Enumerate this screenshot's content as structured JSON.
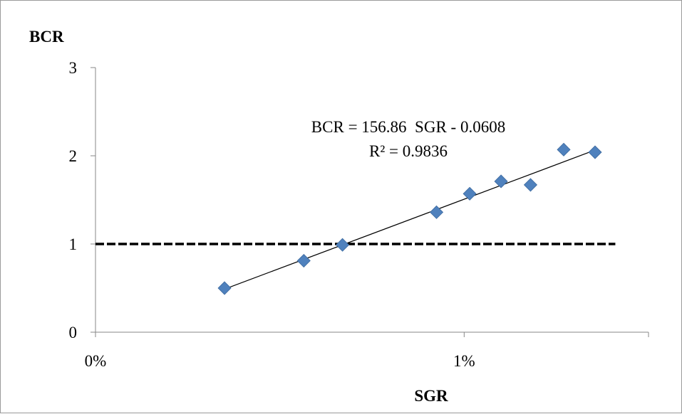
{
  "chart_data": {
    "type": "scatter",
    "title": "",
    "xlabel": "SGR",
    "ylabel": "BCR",
    "xlim": [
      0,
      0.015
    ],
    "ylim": [
      0,
      3
    ],
    "x_tick_values": [
      0,
      0.01
    ],
    "x_tick_labels": [
      "0%",
      "1%"
    ],
    "y_tick_values": [
      0,
      1,
      2,
      3
    ],
    "y_tick_labels": [
      "0",
      "1",
      "2",
      "3"
    ],
    "grid": false,
    "legend": "none",
    "series": [
      {
        "marker": "diamond",
        "color": "#4f81bd",
        "points": [
          {
            "x": 0.0035,
            "y": 0.5
          },
          {
            "x": 0.00565,
            "y": 0.81
          },
          {
            "x": 0.0067,
            "y": 0.99
          },
          {
            "x": 0.00925,
            "y": 1.36
          },
          {
            "x": 0.01015,
            "y": 1.57
          },
          {
            "x": 0.011,
            "y": 1.71
          },
          {
            "x": 0.0118,
            "y": 1.67
          },
          {
            "x": 0.0127,
            "y": 2.07
          },
          {
            "x": 0.01355,
            "y": 2.04
          }
        ]
      }
    ],
    "trendline": {
      "type": "linear",
      "slope": 156.86,
      "intercept": -0.0608,
      "x_range": [
        0.0035,
        0.01355
      ],
      "color": "#000000",
      "equation_label": "BCR = 156.86  SGR - 0.0608",
      "r2_label": "R² = 0.9836"
    },
    "reference_line": {
      "y": 1,
      "x_range": [
        0,
        0.0141
      ],
      "style": "dashed",
      "color": "#000000"
    }
  }
}
